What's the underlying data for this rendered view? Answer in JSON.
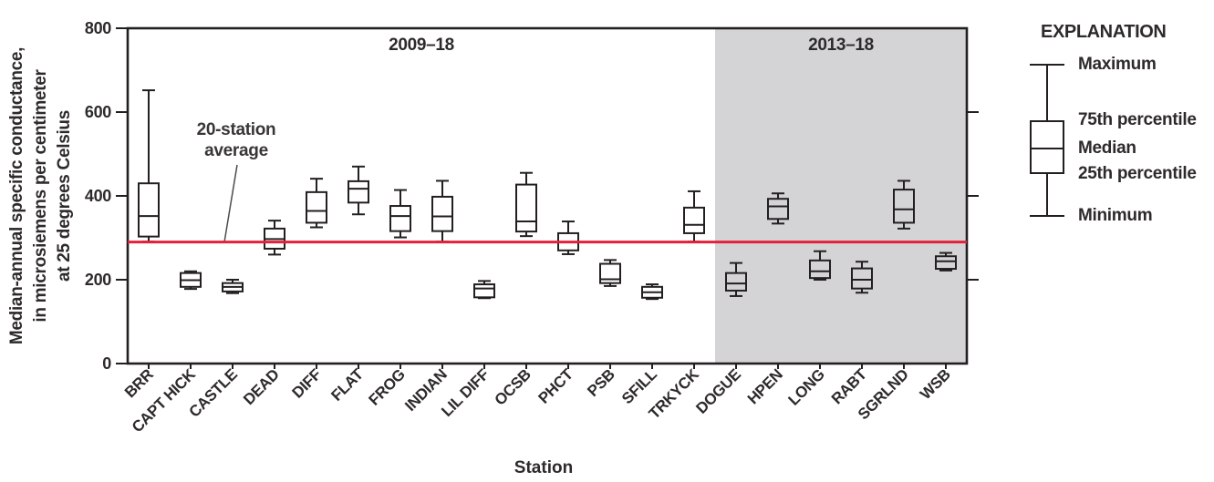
{
  "chart_data": {
    "type": "boxplot",
    "title": "",
    "xlabel": "Station",
    "ylabel": "Median-annual specific conductance, in microsiemens per centimeter at 25 degrees Celsius",
    "y_title_lines": [
      "Median-annual specific conductance,",
      "in microsiemens per centimeter",
      "at 25 degrees Celsius"
    ],
    "ylim": [
      0,
      800
    ],
    "yticks": [
      0,
      200,
      400,
      600,
      800
    ],
    "reference_line": {
      "value": 290,
      "label_line1": "20-station",
      "label_line2": "average"
    },
    "periods": [
      {
        "label": "2009–18",
        "station_count": 14,
        "shaded": false
      },
      {
        "label": "2013–18",
        "station_count": 6,
        "shaded": true
      }
    ],
    "series": [
      {
        "station": "BRR",
        "min": 291,
        "q1": 303,
        "median": 352,
        "q3": 430,
        "max": 652
      },
      {
        "station": "CAPT HICK",
        "min": 178,
        "q1": 183,
        "median": 199,
        "q3": 216,
        "max": 220
      },
      {
        "station": "CASTLE",
        "min": 168,
        "q1": 172,
        "median": 183,
        "q3": 192,
        "max": 200
      },
      {
        "station": "DEAD",
        "min": 260,
        "q1": 274,
        "median": 297,
        "q3": 322,
        "max": 341
      },
      {
        "station": "DIFF",
        "min": 325,
        "q1": 336,
        "median": 364,
        "q3": 409,
        "max": 441
      },
      {
        "station": "FLAT",
        "min": 356,
        "q1": 384,
        "median": 417,
        "q3": 435,
        "max": 470
      },
      {
        "station": "FROG",
        "min": 301,
        "q1": 316,
        "median": 352,
        "q3": 376,
        "max": 414
      },
      {
        "station": "INDIAN",
        "min": 291,
        "q1": 316,
        "median": 351,
        "q3": 398,
        "max": 436
      },
      {
        "station": "LIL DIFF",
        "min": 156,
        "q1": 158,
        "median": 179,
        "q3": 189,
        "max": 197
      },
      {
        "station": "OCSB",
        "min": 304,
        "q1": 315,
        "median": 339,
        "q3": 427,
        "max": 455
      },
      {
        "station": "PHCT",
        "min": 261,
        "q1": 270,
        "median": 290,
        "q3": 311,
        "max": 339
      },
      {
        "station": "PSB",
        "min": 185,
        "q1": 192,
        "median": 201,
        "q3": 238,
        "max": 247
      },
      {
        "station": "SFILL",
        "min": 154,
        "q1": 157,
        "median": 170,
        "q3": 183,
        "max": 189
      },
      {
        "station": "TRKYCK",
        "min": 291,
        "q1": 311,
        "median": 331,
        "q3": 372,
        "max": 411
      },
      {
        "station": "DOGUE",
        "min": 161,
        "q1": 174,
        "median": 191,
        "q3": 216,
        "max": 240
      },
      {
        "station": "HPEN",
        "min": 334,
        "q1": 345,
        "median": 375,
        "q3": 393,
        "max": 406
      },
      {
        "station": "LONG",
        "min": 200,
        "q1": 204,
        "median": 220,
        "q3": 246,
        "max": 268
      },
      {
        "station": "RABT",
        "min": 169,
        "q1": 179,
        "median": 200,
        "q3": 227,
        "max": 243
      },
      {
        "station": "SGRLND",
        "min": 322,
        "q1": 336,
        "median": 368,
        "q3": 415,
        "max": 436
      },
      {
        "station": "WSB",
        "min": 222,
        "q1": 226,
        "median": 244,
        "q3": 256,
        "max": 264
      }
    ]
  },
  "legend": {
    "title": "EXPLANATION",
    "items": [
      "Maximum",
      "75th percentile",
      "Median",
      "25th percentile",
      "Minimum"
    ]
  },
  "colors": {
    "average_line": "#e42139",
    "shaded_region": "#d4d4d6",
    "box_stroke": "#231f20",
    "text": "#2e2a2b",
    "leader_line": "#4c4c4c"
  }
}
